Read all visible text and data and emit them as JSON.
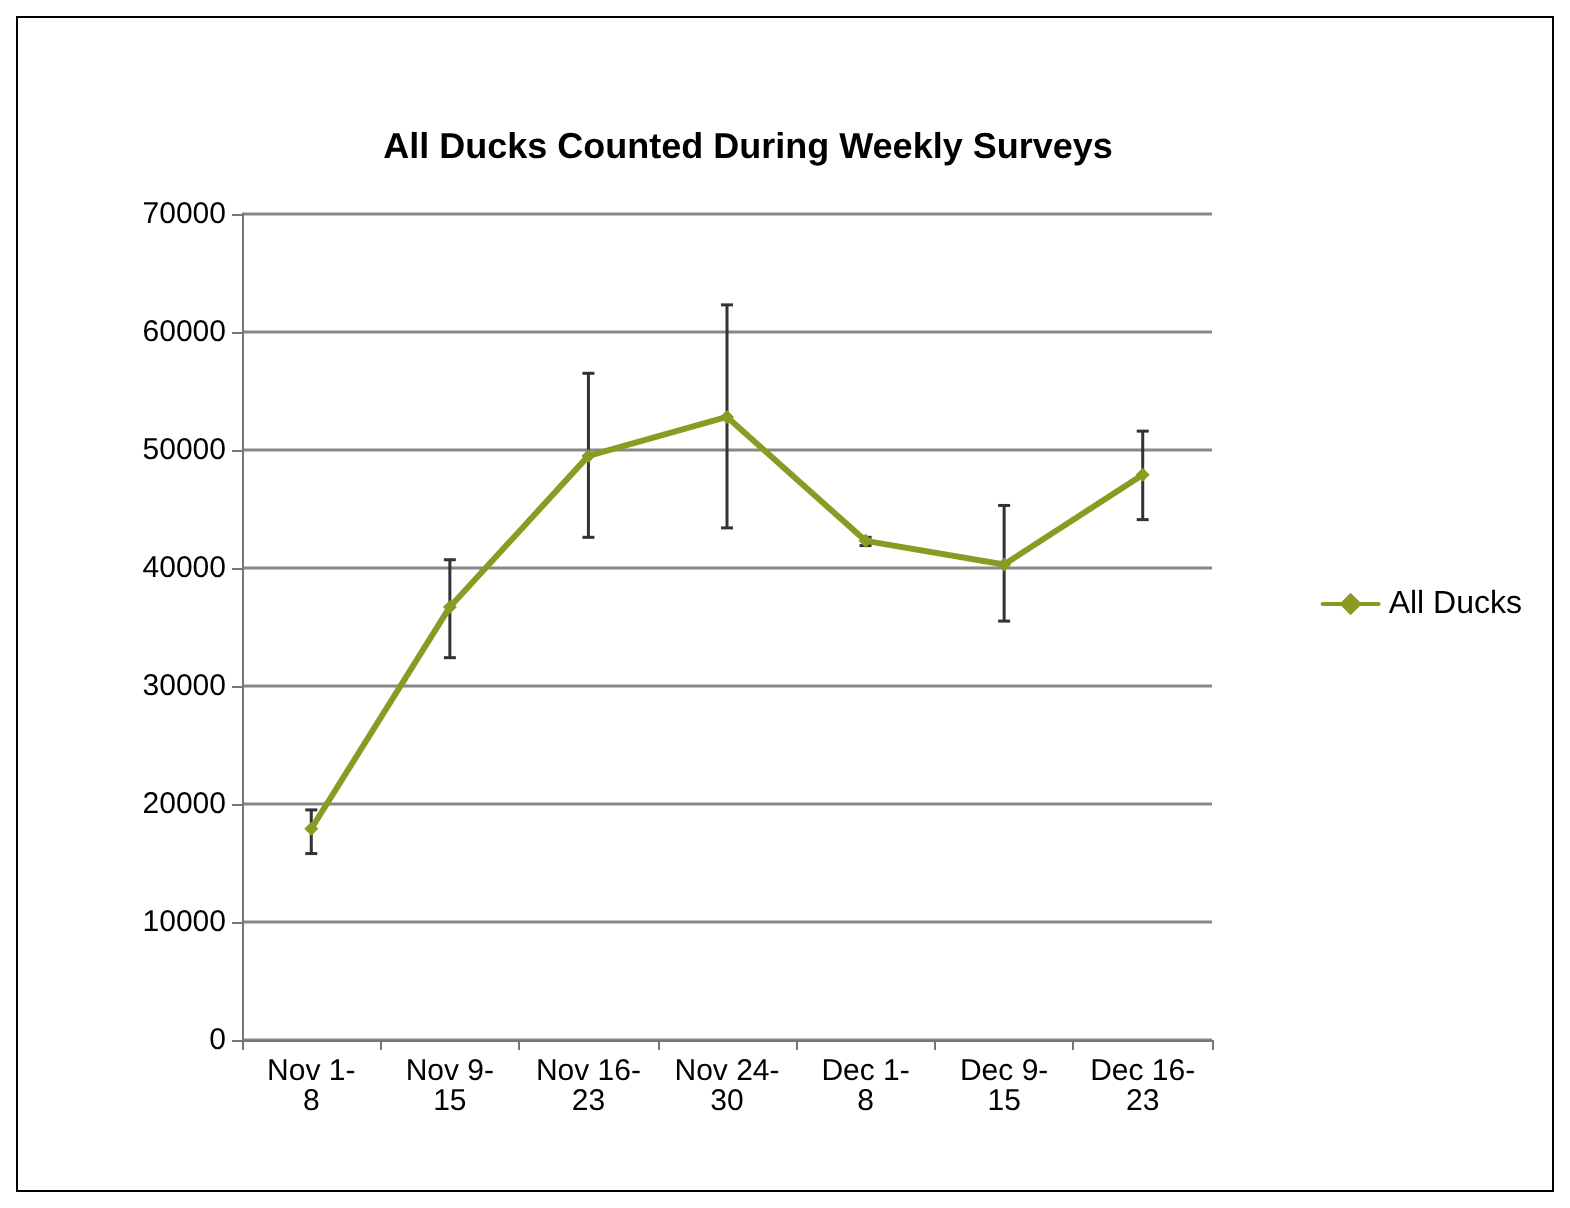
{
  "chart_data": {
    "type": "line",
    "title": "All Ducks Counted During Weekly Surveys",
    "categories": [
      "Nov 1-8",
      "Nov 9-15",
      "Nov 16-23",
      "Nov 24-30",
      "Dec 1-8",
      "Dec 9-15",
      "Dec 16-23"
    ],
    "series": [
      {
        "name": "All Ducks",
        "color": "#8a9a22",
        "values": [
          17900,
          36700,
          49500,
          52800,
          42300,
          40300,
          47900
        ],
        "errors": [
          [
            15800,
            19500
          ],
          [
            32400,
            40700
          ],
          [
            42600,
            56500
          ],
          [
            43400,
            62300
          ],
          [
            41900,
            42600
          ],
          [
            35500,
            45300
          ],
          [
            44100,
            51600
          ]
        ]
      }
    ],
    "ylim": [
      0,
      70000
    ],
    "yticks": [
      0,
      10000,
      20000,
      30000,
      40000,
      50000,
      60000,
      70000
    ],
    "grid": "y",
    "legend": "right",
    "marker": "diamond",
    "line_style": "solid"
  }
}
